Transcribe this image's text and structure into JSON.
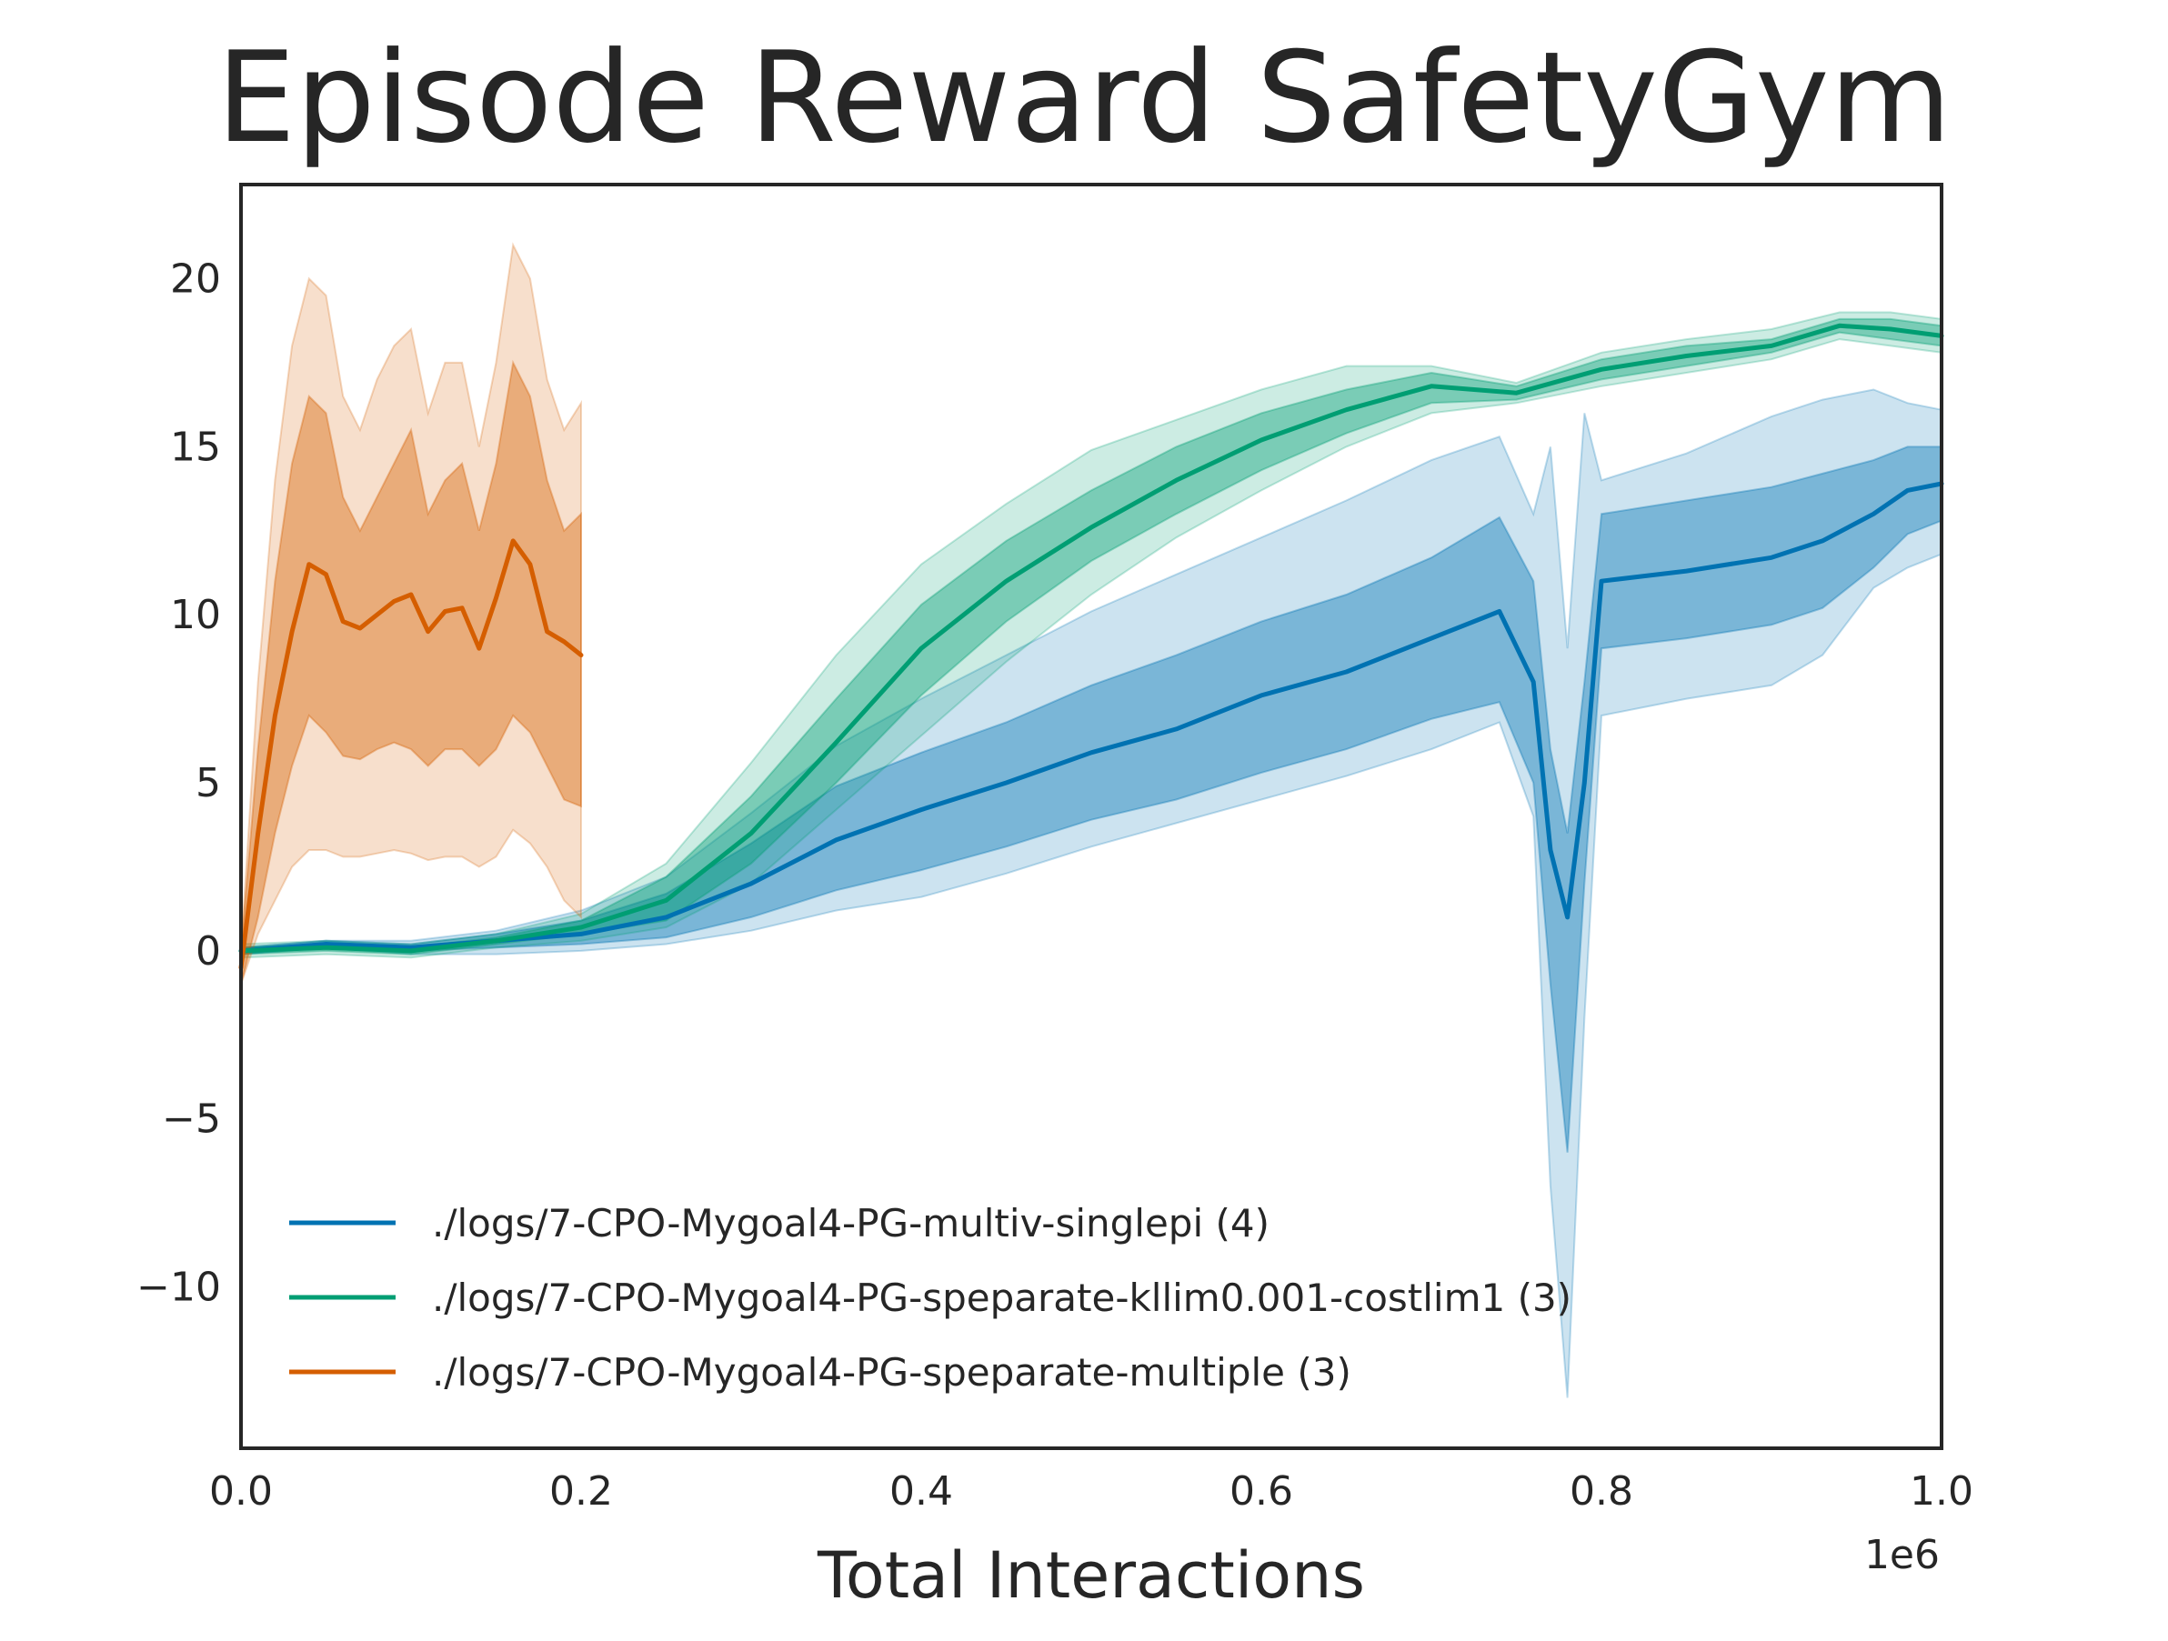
{
  "chart_data": {
    "type": "line",
    "title": "Episode Reward SafetyGym",
    "xlabel": "Total Interactions",
    "ylabel": "",
    "x_offset_text": "1e6",
    "xlim": [
      0.0,
      1.0
    ],
    "ylim": [
      -14.8,
      22.8
    ],
    "xticks": [
      0.0,
      0.2,
      0.4,
      0.6,
      0.8,
      1.0
    ],
    "xtick_labels": [
      "0.0",
      "0.2",
      "0.4",
      "0.6",
      "0.8",
      "1.0"
    ],
    "yticks": [
      -10,
      -5,
      0,
      5,
      10,
      15,
      20
    ],
    "ytick_labels": [
      "−10",
      "−5",
      "0",
      "5",
      "10",
      "15",
      "20"
    ],
    "grid": false,
    "legend_position": "lower-left",
    "series": [
      {
        "name": "./logs/7-CPO-Mygoal4-PG-multiv-singlepi (4)",
        "color": "#0072b2",
        "x": [
          0.0,
          0.05,
          0.1,
          0.15,
          0.2,
          0.25,
          0.3,
          0.35,
          0.4,
          0.45,
          0.5,
          0.55,
          0.6,
          0.65,
          0.7,
          0.74,
          0.76,
          0.77,
          0.78,
          0.79,
          0.8,
          0.85,
          0.9,
          0.93,
          0.96,
          0.98,
          1.0
        ],
        "y": [
          0.0,
          0.2,
          0.1,
          0.3,
          0.5,
          1.0,
          2.0,
          3.3,
          4.2,
          5.0,
          5.9,
          6.6,
          7.6,
          8.3,
          9.3,
          10.1,
          8.0,
          3.0,
          1.0,
          5.0,
          11.0,
          11.3,
          11.7,
          12.2,
          13.0,
          13.7,
          13.9
        ],
        "band_inner_hi": [
          0.1,
          0.3,
          0.2,
          0.5,
          0.9,
          1.7,
          3.2,
          4.9,
          5.9,
          6.8,
          7.9,
          8.8,
          9.8,
          10.6,
          11.7,
          12.9,
          11.0,
          6.0,
          3.5,
          8.0,
          13.0,
          13.4,
          13.8,
          14.2,
          14.6,
          15.0,
          15.0
        ],
        "band_inner_lo": [
          -0.1,
          0.1,
          0.0,
          0.1,
          0.2,
          0.4,
          1.0,
          1.8,
          2.4,
          3.1,
          3.9,
          4.5,
          5.3,
          6.0,
          6.9,
          7.4,
          5.0,
          -1.0,
          -6.0,
          2.0,
          9.0,
          9.3,
          9.7,
          10.2,
          11.4,
          12.4,
          12.8
        ],
        "band_outer_hi": [
          0.1,
          0.3,
          0.3,
          0.6,
          1.2,
          2.2,
          4.1,
          6.1,
          7.5,
          8.8,
          10.1,
          11.2,
          12.3,
          13.4,
          14.6,
          15.3,
          13.0,
          15.0,
          9.0,
          16.0,
          14.0,
          14.8,
          15.9,
          16.4,
          16.7,
          16.3,
          16.1
        ],
        "band_outer_lo": [
          -0.1,
          0.1,
          -0.1,
          -0.1,
          0.0,
          0.2,
          0.6,
          1.2,
          1.6,
          2.3,
          3.1,
          3.8,
          4.5,
          5.2,
          6.0,
          6.8,
          4.0,
          -7.0,
          -13.3,
          -2.0,
          7.0,
          7.5,
          7.9,
          8.8,
          10.8,
          11.4,
          11.8
        ]
      },
      {
        "name": "./logs/7-CPO-Mygoal4-PG-speparate-kllim0.001-costlim1 (3)",
        "color": "#009e73",
        "x": [
          0.0,
          0.05,
          0.1,
          0.15,
          0.2,
          0.25,
          0.3,
          0.35,
          0.4,
          0.45,
          0.5,
          0.55,
          0.6,
          0.65,
          0.7,
          0.75,
          0.8,
          0.85,
          0.9,
          0.94,
          0.97,
          1.0
        ],
        "y": [
          0.0,
          0.1,
          0.0,
          0.3,
          0.7,
          1.5,
          3.5,
          6.2,
          9.0,
          11.0,
          12.6,
          14.0,
          15.2,
          16.1,
          16.8,
          16.6,
          17.3,
          17.7,
          18.0,
          18.6,
          18.5,
          18.3
        ],
        "band_inner_hi": [
          0.1,
          0.2,
          0.1,
          0.4,
          0.9,
          2.2,
          4.6,
          7.5,
          10.3,
          12.2,
          13.7,
          15.0,
          16.0,
          16.7,
          17.2,
          16.8,
          17.6,
          18.0,
          18.2,
          18.8,
          18.8,
          18.6
        ],
        "band_inner_lo": [
          -0.1,
          0.0,
          -0.1,
          0.2,
          0.5,
          0.9,
          2.6,
          5.0,
          7.6,
          9.8,
          11.6,
          13.0,
          14.3,
          15.4,
          16.3,
          16.4,
          17.0,
          17.4,
          17.8,
          18.4,
          18.2,
          18.0
        ],
        "band_outer_hi": [
          0.2,
          0.3,
          0.2,
          0.5,
          1.1,
          2.6,
          5.6,
          8.8,
          11.5,
          13.3,
          14.9,
          15.8,
          16.7,
          17.4,
          17.4,
          16.9,
          17.8,
          18.2,
          18.5,
          19.0,
          19.0,
          18.8
        ],
        "band_outer_lo": [
          -0.2,
          -0.1,
          -0.2,
          0.1,
          0.3,
          0.7,
          2.0,
          4.2,
          6.4,
          8.6,
          10.6,
          12.3,
          13.7,
          15.0,
          16.0,
          16.3,
          16.8,
          17.2,
          17.6,
          18.2,
          18.0,
          17.8
        ]
      },
      {
        "name": "./logs/7-CPO-Mygoal4-PG-speparate-multiple (3)",
        "color": "#d55e00",
        "x": [
          0.0,
          0.01,
          0.02,
          0.03,
          0.04,
          0.05,
          0.06,
          0.07,
          0.08,
          0.09,
          0.1,
          0.11,
          0.12,
          0.13,
          0.14,
          0.15,
          0.16,
          0.17,
          0.18,
          0.19,
          0.2
        ],
        "y": [
          -0.5,
          3.5,
          7.0,
          9.5,
          11.5,
          11.2,
          9.8,
          9.6,
          10.0,
          10.4,
          10.6,
          9.5,
          10.1,
          10.2,
          9.0,
          10.5,
          12.2,
          11.5,
          9.5,
          9.2,
          8.8
        ],
        "band_inner_hi": [
          0.0,
          6.0,
          11.0,
          14.5,
          16.5,
          16.0,
          13.5,
          12.5,
          13.5,
          14.5,
          15.5,
          13.0,
          14.0,
          14.5,
          12.5,
          14.5,
          17.5,
          16.5,
          14.0,
          12.5,
          13.0
        ],
        "band_inner_lo": [
          -1.0,
          1.0,
          3.5,
          5.5,
          7.0,
          6.5,
          5.8,
          5.7,
          6.0,
          6.2,
          6.0,
          5.5,
          6.0,
          6.0,
          5.5,
          6.0,
          7.0,
          6.5,
          5.5,
          4.5,
          4.3
        ],
        "band_outer_hi": [
          0.0,
          8.0,
          14.0,
          18.0,
          20.0,
          19.5,
          16.5,
          15.5,
          17.0,
          18.0,
          18.5,
          16.0,
          17.5,
          17.5,
          15.0,
          17.5,
          21.0,
          20.0,
          17.0,
          15.5,
          16.3
        ],
        "band_outer_lo": [
          -1.0,
          0.5,
          1.5,
          2.5,
          3.0,
          3.0,
          2.8,
          2.8,
          2.9,
          3.0,
          2.9,
          2.7,
          2.8,
          2.8,
          2.5,
          2.8,
          3.6,
          3.2,
          2.5,
          1.5,
          1.0
        ]
      }
    ]
  }
}
